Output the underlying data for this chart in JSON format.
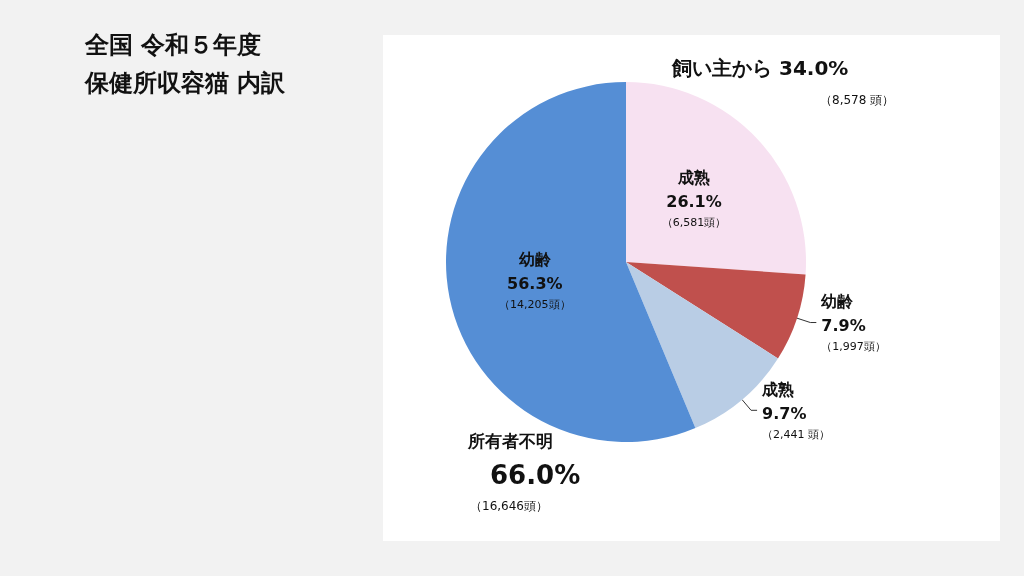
{
  "chart_data": {
    "type": "pie",
    "title": "全国 令和５年度",
    "subtitle": "保健所収容猫 内訳",
    "categories": [
      "成熟",
      "幼齢",
      "成熟",
      "幼齢"
    ],
    "values": [
      26.1,
      7.9,
      9.7,
      56.3
    ],
    "colors": [
      "#f7e1f1",
      "#c0504d",
      "#b9cde5",
      "#558ed5"
    ],
    "value_labels": [
      "26.1%\n（6,581頭）",
      "7.9%\n（1,997頭）",
      "9.7%\n（2,441 頭）",
      "56.3%\n（14,205頭）"
    ],
    "annotations": [
      "飼い主から 34.0%",
      "（8,578 頭）",
      "所有者不明",
      "66.0%",
      "（16,646頭）"
    ],
    "legend": false
  }
}
